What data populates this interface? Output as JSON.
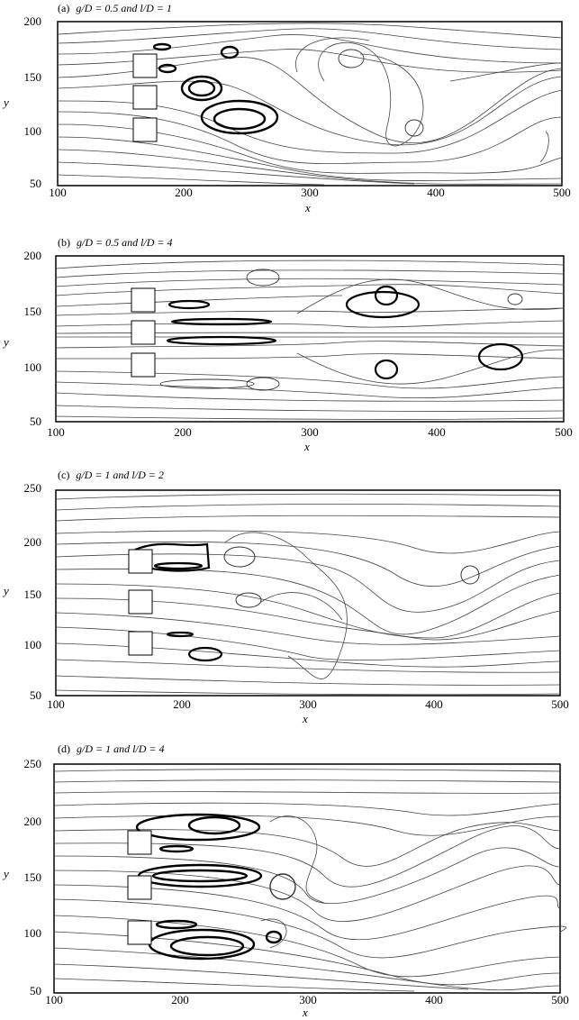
{
  "figure": {
    "panels": [
      {
        "id": "a",
        "title_tag": "(a)",
        "title_cond": "g/D = 0.5 and  l/D = 1",
        "ylabel": "y",
        "xlabel": "x",
        "xticks": [
          "100",
          "200",
          "300",
          "400",
          "500"
        ],
        "yticks": [
          "200",
          "150",
          "100",
          "50"
        ],
        "xlim": [
          100,
          500
        ],
        "ylim": [
          50,
          200
        ]
      },
      {
        "id": "b",
        "title_tag": "(b)",
        "title_cond": "g/D = 0.5 and  l/D = 4",
        "ylabel": "y",
        "xlabel": "x",
        "xticks": [
          "100",
          "200",
          "300",
          "400",
          "500"
        ],
        "yticks": [
          "200",
          "150",
          "100",
          "50"
        ],
        "xlim": [
          100,
          500
        ],
        "ylim": [
          50,
          200
        ]
      },
      {
        "id": "c",
        "title_tag": "(c)",
        "title_cond": "g/D = 1  and  l/D = 2",
        "ylabel": "y",
        "xlabel": "x",
        "xticks": [
          "100",
          "200",
          "300",
          "400",
          "500"
        ],
        "yticks": [
          "250",
          "200",
          "150",
          "100",
          "50"
        ],
        "xlim": [
          100,
          500
        ],
        "ylim": [
          50,
          250
        ]
      },
      {
        "id": "d",
        "title_tag": "(d)",
        "title_cond": "g/D = 1  and  l/D = 4",
        "ylabel": "y",
        "xlabel": "x",
        "xticks": [
          "100",
          "200",
          "300",
          "400",
          "500"
        ],
        "yticks": [
          "250",
          "200",
          "150",
          "100",
          "50"
        ],
        "xlim": [
          100,
          500
        ],
        "ylim": [
          50,
          250
        ]
      }
    ]
  }
}
